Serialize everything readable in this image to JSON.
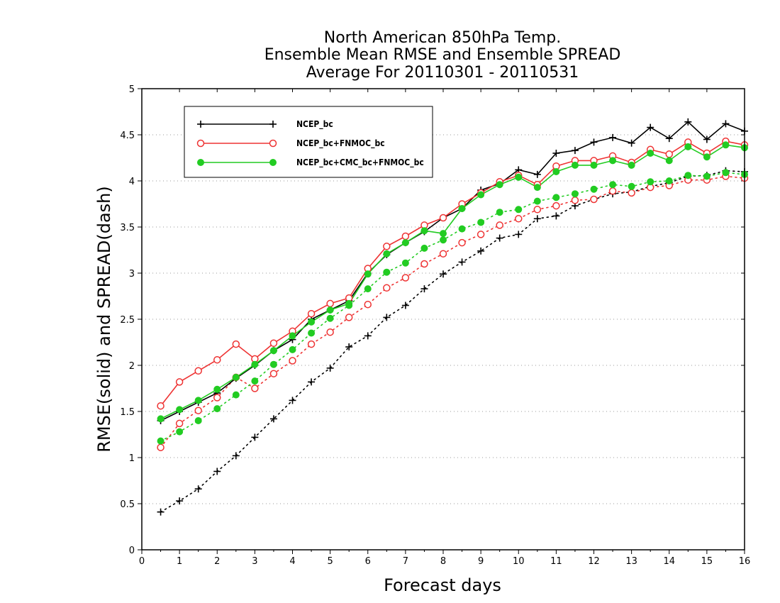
{
  "chart_data": {
    "type": "line",
    "title_lines": [
      "North American 850hPa Temp.",
      "Ensemble Mean RMSE and Ensemble SPREAD",
      "Average For 20110301 - 20110531"
    ],
    "xlabel": "Forecast days",
    "ylabel": "RMSE(solid) and SPREAD(dash)",
    "xlim": [
      0,
      16
    ],
    "ylim": [
      0,
      5
    ],
    "x_ticks": [
      "0",
      "1",
      "2",
      "3",
      "4",
      "5",
      "6",
      "7",
      "8",
      "9",
      "10",
      "11",
      "12",
      "13",
      "14",
      "15",
      "16"
    ],
    "y_ticks": [
      "0",
      "0.5",
      "1",
      "1.5",
      "2",
      "2.5",
      "3",
      "3.5",
      "4",
      "4.5",
      "5"
    ],
    "grid": "horizontal dotted",
    "legend_position": "top-left",
    "x": [
      0.5,
      1,
      1.5,
      2,
      2.5,
      3,
      3.5,
      4,
      4.5,
      5,
      5.5,
      6,
      6.5,
      7,
      7.5,
      8,
      8.5,
      9,
      9.5,
      10,
      10.5,
      11,
      11.5,
      12,
      12.5,
      13,
      13.5,
      14,
      14.5,
      15,
      15.5,
      16
    ],
    "series": [
      {
        "name": "NCEP_bc",
        "color": "#000000",
        "marker": "plus",
        "rmse": [
          1.4,
          1.5,
          1.6,
          1.7,
          1.86,
          2.0,
          2.16,
          2.28,
          2.5,
          2.6,
          2.7,
          3.0,
          3.2,
          3.33,
          3.45,
          3.6,
          3.7,
          3.9,
          3.97,
          4.12,
          4.07,
          4.3,
          4.33,
          4.42,
          4.47,
          4.41,
          4.58,
          4.46,
          4.64,
          4.45,
          4.62,
          4.54
        ],
        "spread": [
          0.41,
          0.53,
          0.66,
          0.85,
          1.02,
          1.22,
          1.42,
          1.62,
          1.82,
          1.97,
          2.2,
          2.32,
          2.52,
          2.65,
          2.83,
          2.99,
          3.12,
          3.24,
          3.38,
          3.42,
          3.59,
          3.62,
          3.73,
          3.8,
          3.86,
          3.88,
          3.94,
          3.98,
          4.05,
          4.06,
          4.11,
          4.1
        ]
      },
      {
        "name": "NCEP_bc+FNMOC_bc",
        "color": "#ee3333",
        "marker": "open-circle",
        "rmse": [
          1.56,
          1.82,
          1.94,
          2.06,
          2.23,
          2.07,
          2.24,
          2.37,
          2.56,
          2.67,
          2.73,
          3.05,
          3.29,
          3.4,
          3.52,
          3.6,
          3.75,
          3.87,
          3.99,
          4.06,
          3.96,
          4.16,
          4.22,
          4.22,
          4.27,
          4.2,
          4.34,
          4.29,
          4.42,
          4.3,
          4.43,
          4.39
        ],
        "spread": [
          1.11,
          1.37,
          1.51,
          1.65,
          1.87,
          1.75,
          1.91,
          2.05,
          2.23,
          2.36,
          2.52,
          2.66,
          2.84,
          2.95,
          3.1,
          3.21,
          3.33,
          3.42,
          3.52,
          3.59,
          3.69,
          3.73,
          3.79,
          3.8,
          3.89,
          3.87,
          3.93,
          3.95,
          4.01,
          4.01,
          4.05,
          4.03
        ]
      },
      {
        "name": "NCEP_bc+CMC_bc+FNMOC_bc",
        "color": "#22cc22",
        "marker": "filled-circle",
        "rmse": [
          1.42,
          1.52,
          1.62,
          1.74,
          1.87,
          2.01,
          2.16,
          2.32,
          2.47,
          2.6,
          2.67,
          2.99,
          3.21,
          3.33,
          3.46,
          3.43,
          3.7,
          3.85,
          3.96,
          4.04,
          3.93,
          4.1,
          4.17,
          4.17,
          4.22,
          4.17,
          4.3,
          4.22,
          4.37,
          4.26,
          4.39,
          4.36
        ],
        "spread": [
          1.18,
          1.28,
          1.4,
          1.53,
          1.68,
          1.83,
          2.01,
          2.17,
          2.35,
          2.51,
          2.65,
          2.83,
          3.01,
          3.11,
          3.27,
          3.36,
          3.48,
          3.55,
          3.66,
          3.69,
          3.78,
          3.82,
          3.86,
          3.91,
          3.96,
          3.94,
          3.99,
          4.0,
          4.06,
          4.05,
          4.09,
          4.07
        ]
      }
    ]
  }
}
